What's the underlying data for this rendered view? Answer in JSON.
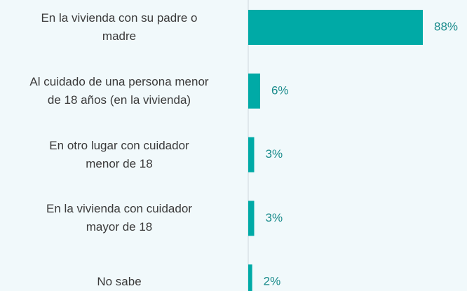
{
  "chart_data": {
    "type": "barh",
    "categories": [
      "En la vivienda con su padre o\nmadre",
      "Al cuidado de una persona menor\nde 18 años (en la vivienda)",
      "En otro lugar con cuidador\nmenor de 18",
      "En la vivienda con cuidador\nmayor de 18",
      "No sabe"
    ],
    "values": [
      88,
      6,
      3,
      3,
      2
    ],
    "value_labels": [
      "88%",
      "6%",
      "3%",
      "3%",
      "2%"
    ],
    "color": "#00aaa6"
  }
}
